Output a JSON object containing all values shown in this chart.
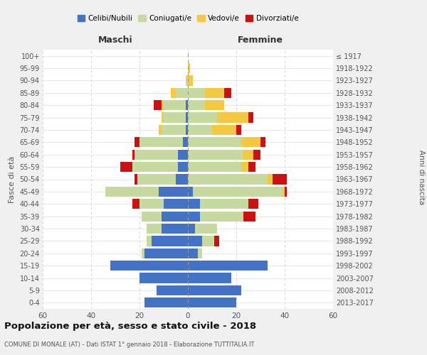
{
  "age_groups": [
    "0-4",
    "5-9",
    "10-14",
    "15-19",
    "20-24",
    "25-29",
    "30-34",
    "35-39",
    "40-44",
    "45-49",
    "50-54",
    "55-59",
    "60-64",
    "65-69",
    "70-74",
    "75-79",
    "80-84",
    "85-89",
    "90-94",
    "95-99",
    "100+"
  ],
  "birth_years": [
    "2013-2017",
    "2008-2012",
    "2003-2007",
    "1998-2002",
    "1993-1997",
    "1988-1992",
    "1983-1987",
    "1978-1982",
    "1973-1977",
    "1968-1972",
    "1963-1967",
    "1958-1962",
    "1953-1957",
    "1948-1952",
    "1943-1947",
    "1938-1942",
    "1933-1937",
    "1928-1932",
    "1923-1927",
    "1918-1922",
    "≤ 1917"
  ],
  "maschi": {
    "celibi": [
      18,
      13,
      20,
      32,
      18,
      15,
      11,
      11,
      10,
      12,
      5,
      4,
      4,
      2,
      1,
      1,
      1,
      0,
      0,
      0,
      0
    ],
    "coniugati": [
      0,
      0,
      0,
      0,
      1,
      2,
      6,
      8,
      10,
      22,
      16,
      19,
      18,
      18,
      10,
      9,
      9,
      5,
      1,
      0,
      0
    ],
    "vedovi": [
      0,
      0,
      0,
      0,
      0,
      0,
      0,
      0,
      0,
      0,
      0,
      0,
      0,
      0,
      1,
      1,
      1,
      2,
      0,
      0,
      0
    ],
    "divorziati": [
      0,
      0,
      0,
      0,
      0,
      0,
      0,
      0,
      3,
      0,
      1,
      5,
      1,
      2,
      0,
      0,
      3,
      0,
      0,
      0,
      0
    ]
  },
  "femmine": {
    "nubili": [
      20,
      22,
      18,
      33,
      4,
      6,
      3,
      5,
      5,
      2,
      0,
      0,
      0,
      0,
      0,
      0,
      0,
      0,
      0,
      0,
      0
    ],
    "coniugate": [
      0,
      0,
      0,
      0,
      2,
      5,
      9,
      18,
      20,
      37,
      33,
      22,
      23,
      22,
      10,
      12,
      7,
      7,
      0,
      0,
      0
    ],
    "vedove": [
      0,
      0,
      0,
      0,
      0,
      0,
      0,
      0,
      0,
      1,
      2,
      3,
      4,
      8,
      10,
      13,
      8,
      8,
      2,
      1,
      0
    ],
    "divorziate": [
      0,
      0,
      0,
      0,
      0,
      2,
      0,
      5,
      4,
      1,
      6,
      3,
      3,
      2,
      2,
      2,
      0,
      3,
      0,
      0,
      0
    ]
  },
  "colors": {
    "celibi_nubili": "#4472c4",
    "coniugati": "#c5d9a0",
    "vedovi": "#f5c842",
    "divorziati": "#cc1111"
  },
  "xlim": 60,
  "title": "Popolazione per età, sesso e stato civile - 2018",
  "subtitle": "COMUNE DI MONALE (AT) - Dati ISTAT 1° gennaio 2018 - Elaborazione TUTTITALIA.IT",
  "ylabel": "Fasce di età",
  "right_ylabel": "Anni di nascita",
  "legend_labels": [
    "Celibi/Nubili",
    "Coniugati/e",
    "Vedovi/e",
    "Divorziati/e"
  ],
  "bg_color": "#f0f0f0",
  "plot_bg": "#ffffff"
}
